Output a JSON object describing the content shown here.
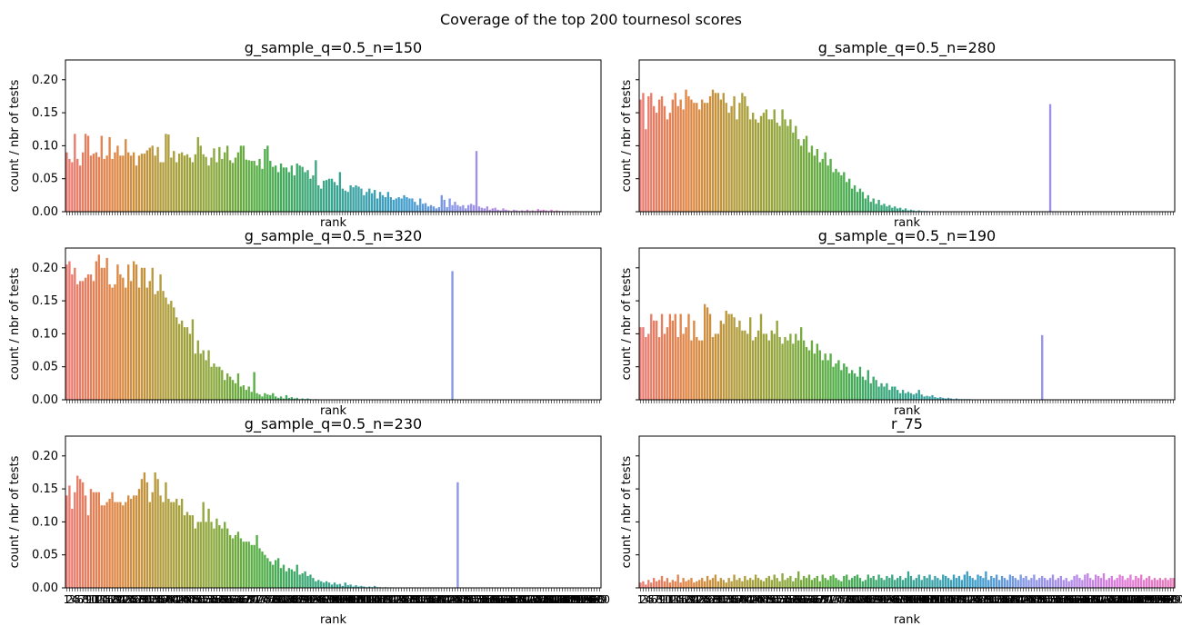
{
  "figure": {
    "suptitle": "Coverage of the top 200 tournesol scores"
  },
  "palette": {
    "hue_stops": [
      "#ea7a73",
      "#df8642",
      "#b19d3c",
      "#8ca83d",
      "#51ae45",
      "#39a778",
      "#3aa2a5",
      "#3f9ccc",
      "#8a97e6",
      "#b78ae8",
      "#e27ad8",
      "#e579b8"
    ],
    "rank_flagged_color": "#b490f0",
    "axes_color": "#000000"
  },
  "chart_data": [
    {
      "type": "bar",
      "title": "g_sample_q=0.5_n=150",
      "xlabel": "rank",
      "ylabel": "count / nbr of tests",
      "ylim": [
        0,
        0.23
      ],
      "yticks": [
        "0.00",
        "0.05",
        "0.10",
        "0.15",
        "0.20"
      ],
      "n_categories": 200,
      "x_ticklabels_shown": false,
      "values": [
        0.09,
        0.08,
        0.075,
        0.118,
        0.08,
        0.07,
        0.09,
        0.118,
        0.115,
        0.085,
        0.088,
        0.09,
        0.083,
        0.115,
        0.08,
        0.085,
        0.113,
        0.08,
        0.09,
        0.1,
        0.085,
        0.085,
        0.11,
        0.09,
        0.085,
        0.09,
        0.07,
        0.085,
        0.088,
        0.088,
        0.093,
        0.097,
        0.1,
        0.085,
        0.098,
        0.075,
        0.075,
        0.118,
        0.117,
        0.082,
        0.092,
        0.075,
        0.088,
        0.09,
        0.085,
        0.087,
        0.082,
        0.075,
        0.087,
        0.113,
        0.1,
        0.087,
        0.083,
        0.07,
        0.082,
        0.096,
        0.075,
        0.098,
        0.08,
        0.09,
        0.1,
        0.078,
        0.074,
        0.082,
        0.09,
        0.1,
        0.1,
        0.079,
        0.078,
        0.077,
        0.077,
        0.07,
        0.08,
        0.065,
        0.095,
        0.1,
        0.077,
        0.068,
        0.07,
        0.06,
        0.073,
        0.067,
        0.067,
        0.06,
        0.07,
        0.055,
        0.073,
        0.07,
        0.068,
        0.06,
        0.063,
        0.05,
        0.055,
        0.078,
        0.04,
        0.035,
        0.047,
        0.048,
        0.05,
        0.05,
        0.045,
        0.04,
        0.06,
        0.035,
        0.032,
        0.03,
        0.04,
        0.037,
        0.04,
        0.038,
        0.035,
        0.025,
        0.03,
        0.035,
        0.028,
        0.033,
        0.02,
        0.03,
        0.025,
        0.022,
        0.03,
        0.022,
        0.018,
        0.02,
        0.022,
        0.02,
        0.025,
        0.022,
        0.02,
        0.02,
        0.015,
        0.01,
        0.02,
        0.012,
        0.013,
        0.008,
        0.01,
        0.008,
        0.005,
        0.007,
        0.025,
        0.018,
        0.007,
        0.02,
        0.01,
        0.015,
        0.01,
        0.008,
        0.01,
        0.005,
        0.01,
        0.012,
        0.01,
        0.092,
        0.008,
        0.006,
        0.005,
        0.008,
        0.003,
        0.005,
        0.006,
        0.003,
        0.002,
        0.005,
        0.003,
        0.002,
        0.001,
        0.003,
        0.002,
        0.001,
        0.002,
        0.001,
        0.003,
        0.001,
        0.002,
        0.001,
        0.004,
        0.002,
        0.003,
        0.002,
        0.001,
        0.003,
        0.001,
        0.002,
        0.001,
        0.001,
        0,
        0.001,
        0,
        0,
        0.001,
        0,
        0,
        0,
        0,
        0,
        0,
        0,
        0,
        0,
        0,
        0,
        0,
        0
      ]
    },
    {
      "type": "bar",
      "title": "g_sample_q=0.5_n=280",
      "xlabel": "rank",
      "ylabel": "count / nbr of tests",
      "ylim": [
        0,
        0.23
      ],
      "yticks": [],
      "n_categories": 200,
      "x_ticklabels_shown": false,
      "values": [
        0.17,
        0.18,
        0.125,
        0.175,
        0.18,
        0.16,
        0.15,
        0.17,
        0.175,
        0.16,
        0.14,
        0.15,
        0.17,
        0.18,
        0.16,
        0.17,
        0.155,
        0.185,
        0.175,
        0.17,
        0.165,
        0.165,
        0.155,
        0.17,
        0.165,
        0.165,
        0.175,
        0.185,
        0.18,
        0.18,
        0.17,
        0.18,
        0.165,
        0.15,
        0.16,
        0.175,
        0.14,
        0.165,
        0.18,
        0.175,
        0.16,
        0.14,
        0.15,
        0.14,
        0.135,
        0.145,
        0.15,
        0.155,
        0.14,
        0.14,
        0.155,
        0.135,
        0.13,
        0.155,
        0.14,
        0.13,
        0.14,
        0.12,
        0.13,
        0.11,
        0.1,
        0.11,
        0.115,
        0.09,
        0.1,
        0.085,
        0.095,
        0.075,
        0.08,
        0.09,
        0.07,
        0.08,
        0.06,
        0.065,
        0.06,
        0.055,
        0.06,
        0.045,
        0.05,
        0.035,
        0.04,
        0.03,
        0.035,
        0.03,
        0.02,
        0.025,
        0.015,
        0.02,
        0.012,
        0.018,
        0.01,
        0.012,
        0.008,
        0.01,
        0.006,
        0.008,
        0.005,
        0.006,
        0.003,
        0.005,
        0.002,
        0.003,
        0.002,
        0.001,
        0.002,
        0.001,
        0.001,
        0.001,
        0,
        0,
        0,
        0,
        0,
        0,
        0,
        0,
        0,
        0,
        0,
        0,
        0,
        0,
        0,
        0,
        0,
        0,
        0,
        0,
        0,
        0,
        0,
        0,
        0,
        0,
        0,
        0,
        0,
        0,
        0,
        0,
        0,
        0,
        0,
        0,
        0,
        0,
        0,
        0,
        0,
        0,
        0,
        0,
        0,
        0.163,
        0,
        0,
        0,
        0,
        0,
        0,
        0,
        0,
        0,
        0,
        0,
        0,
        0,
        0,
        0,
        0,
        0,
        0,
        0,
        0,
        0,
        0,
        0,
        0,
        0,
        0,
        0,
        0,
        0,
        0,
        0,
        0,
        0,
        0,
        0,
        0,
        0,
        0,
        0,
        0,
        0,
        0,
        0,
        0,
        0,
        0,
        0,
        0,
        0,
        0
      ]
    },
    {
      "type": "bar",
      "title": "g_sample_q=0.5_n=320",
      "xlabel": "rank",
      "ylabel": "count / nbr of tests",
      "ylim": [
        0,
        0.23
      ],
      "yticks": [
        "0.00",
        "0.05",
        "0.10",
        "0.15",
        "0.20"
      ],
      "n_categories": 200,
      "x_ticklabels_shown": false,
      "values": [
        0.205,
        0.21,
        0.19,
        0.2,
        0.175,
        0.18,
        0.18,
        0.185,
        0.19,
        0.19,
        0.18,
        0.21,
        0.22,
        0.2,
        0.2,
        0.215,
        0.175,
        0.17,
        0.175,
        0.205,
        0.19,
        0.185,
        0.17,
        0.205,
        0.18,
        0.21,
        0.205,
        0.17,
        0.2,
        0.2,
        0.17,
        0.18,
        0.2,
        0.16,
        0.165,
        0.19,
        0.165,
        0.155,
        0.145,
        0.15,
        0.14,
        0.125,
        0.115,
        0.12,
        0.11,
        0.11,
        0.1,
        0.122,
        0.07,
        0.09,
        0.07,
        0.075,
        0.06,
        0.075,
        0.05,
        0.055,
        0.05,
        0.05,
        0.045,
        0.03,
        0.04,
        0.035,
        0.03,
        0.025,
        0.04,
        0.02,
        0.022,
        0.015,
        0.02,
        0.012,
        0.042,
        0.01,
        0.008,
        0.005,
        0.01,
        0.008,
        0.007,
        0.01,
        0.005,
        0.003,
        0.005,
        0.002,
        0.007,
        0.003,
        0.004,
        0.002,
        0.003,
        0.001,
        0.002,
        0.001,
        0.002,
        0.001,
        0,
        0.001,
        0,
        0,
        0,
        0,
        0,
        0,
        0,
        0,
        0,
        0,
        0,
        0,
        0,
        0,
        0,
        0,
        0,
        0,
        0,
        0,
        0,
        0,
        0,
        0,
        0,
        0,
        0,
        0,
        0,
        0,
        0,
        0,
        0,
        0,
        0,
        0,
        0,
        0,
        0,
        0,
        0,
        0,
        0,
        0,
        0,
        0,
        0,
        0,
        0,
        0,
        0.195,
        0,
        0,
        0,
        0,
        0,
        0,
        0,
        0,
        0,
        0,
        0,
        0,
        0,
        0,
        0,
        0,
        0,
        0,
        0,
        0,
        0,
        0,
        0,
        0,
        0,
        0,
        0,
        0,
        0,
        0,
        0,
        0,
        0,
        0,
        0,
        0,
        0,
        0,
        0,
        0,
        0,
        0,
        0,
        0,
        0,
        0,
        0,
        0,
        0,
        0,
        0,
        0,
        0,
        0,
        0,
        0,
        0,
        0,
        0,
        0,
        0,
        0,
        0,
        0,
        0,
        0
      ]
    },
    {
      "type": "bar",
      "title": "g_sample_q=0.5_n=190",
      "xlabel": "rank",
      "ylabel": "count / nbr of tests",
      "ylim": [
        0,
        0.23
      ],
      "yticks": [],
      "n_categories": 200,
      "x_ticklabels_shown": false,
      "values": [
        0.11,
        0.11,
        0.095,
        0.1,
        0.13,
        0.12,
        0.12,
        0.095,
        0.13,
        0.1,
        0.11,
        0.13,
        0.12,
        0.13,
        0.095,
        0.13,
        0.1,
        0.11,
        0.13,
        0.09,
        0.12,
        0.095,
        0.09,
        0.09,
        0.145,
        0.14,
        0.13,
        0.095,
        0.1,
        0.1,
        0.12,
        0.115,
        0.135,
        0.13,
        0.13,
        0.125,
        0.11,
        0.12,
        0.105,
        0.105,
        0.1,
        0.125,
        0.09,
        0.095,
        0.105,
        0.13,
        0.1,
        0.1,
        0.09,
        0.105,
        0.1,
        0.12,
        0.095,
        0.085,
        0.095,
        0.09,
        0.1,
        0.085,
        0.1,
        0.09,
        0.11,
        0.09,
        0.08,
        0.075,
        0.09,
        0.07,
        0.085,
        0.075,
        0.06,
        0.07,
        0.06,
        0.07,
        0.05,
        0.055,
        0.06,
        0.045,
        0.055,
        0.05,
        0.04,
        0.045,
        0.04,
        0.035,
        0.05,
        0.035,
        0.03,
        0.045,
        0.025,
        0.035,
        0.03,
        0.02,
        0.025,
        0.02,
        0.025,
        0.015,
        0.02,
        0.02,
        0.015,
        0.01,
        0.015,
        0.01,
        0.012,
        0.01,
        0.008,
        0.01,
        0.015,
        0.008,
        0.005,
        0.006,
        0.005,
        0.007,
        0.004,
        0.003,
        0.004,
        0.003,
        0.002,
        0.003,
        0.002,
        0.001,
        0.002,
        0.001,
        0.001,
        0.001,
        0.001,
        0.001,
        0,
        0,
        0,
        0,
        0,
        0,
        0,
        0,
        0,
        0,
        0,
        0,
        0,
        0,
        0,
        0,
        0,
        0,
        0,
        0,
        0,
        0,
        0,
        0,
        0,
        0,
        0.098,
        0,
        0,
        0,
        0,
        0,
        0,
        0,
        0,
        0,
        0,
        0,
        0,
        0,
        0,
        0,
        0,
        0,
        0,
        0,
        0,
        0,
        0,
        0,
        0,
        0,
        0,
        0,
        0,
        0,
        0,
        0,
        0,
        0,
        0,
        0,
        0,
        0,
        0,
        0,
        0,
        0,
        0,
        0,
        0,
        0,
        0,
        0,
        0,
        0,
        0,
        0,
        0,
        0,
        0,
        0,
        0,
        0
      ]
    },
    {
      "type": "bar",
      "title": "g_sample_q=0.5_n=230",
      "xlabel": "rank",
      "ylabel": "count / nbr of tests",
      "ylim": [
        0,
        0.23
      ],
      "yticks": [
        "0.00",
        "0.05",
        "0.10",
        "0.15",
        "0.20"
      ],
      "n_categories": 200,
      "x_ticklabels_shown": true,
      "x_ticklabels_note": "1 … 200 (overlapping, illegible)",
      "values": [
        0.14,
        0.155,
        0.12,
        0.145,
        0.17,
        0.165,
        0.16,
        0.14,
        0.11,
        0.15,
        0.145,
        0.145,
        0.145,
        0.125,
        0.125,
        0.13,
        0.135,
        0.145,
        0.13,
        0.13,
        0.13,
        0.125,
        0.13,
        0.14,
        0.135,
        0.14,
        0.14,
        0.15,
        0.165,
        0.175,
        0.16,
        0.13,
        0.145,
        0.175,
        0.165,
        0.14,
        0.13,
        0.16,
        0.135,
        0.13,
        0.13,
        0.135,
        0.125,
        0.135,
        0.11,
        0.115,
        0.11,
        0.11,
        0.09,
        0.1,
        0.1,
        0.13,
        0.1,
        0.12,
        0.1,
        0.09,
        0.105,
        0.095,
        0.09,
        0.1,
        0.09,
        0.08,
        0.075,
        0.08,
        0.085,
        0.075,
        0.07,
        0.07,
        0.07,
        0.065,
        0.065,
        0.08,
        0.06,
        0.055,
        0.05,
        0.045,
        0.04,
        0.035,
        0.042,
        0.045,
        0.03,
        0.035,
        0.025,
        0.03,
        0.028,
        0.025,
        0.035,
        0.02,
        0.022,
        0.025,
        0.018,
        0.02,
        0.015,
        0.01,
        0.012,
        0.01,
        0.008,
        0.01,
        0.008,
        0.005,
        0.008,
        0.005,
        0.006,
        0.003,
        0.008,
        0.004,
        0.005,
        0.002,
        0.004,
        0.002,
        0.003,
        0.002,
        0.001,
        0.002,
        0.001,
        0.003,
        0.001,
        0.001,
        0,
        0.001,
        0,
        0,
        0,
        0,
        0,
        0,
        0,
        0,
        0,
        0,
        0,
        0,
        0,
        0,
        0,
        0,
        0,
        0,
        0,
        0,
        0,
        0,
        0,
        0,
        0,
        0,
        0.16,
        0,
        0,
        0,
        0,
        0,
        0,
        0,
        0,
        0,
        0,
        0,
        0,
        0,
        0,
        0,
        0,
        0,
        0,
        0,
        0,
        0,
        0,
        0,
        0,
        0,
        0,
        0,
        0,
        0,
        0,
        0,
        0,
        0,
        0,
        0,
        0,
        0,
        0,
        0,
        0,
        0,
        0,
        0,
        0,
        0,
        0,
        0,
        0,
        0,
        0,
        0,
        0,
        0,
        0,
        0,
        0,
        0,
        0,
        0,
        0,
        0,
        0,
        0,
        0,
        0
      ]
    },
    {
      "type": "bar",
      "title": "r_75",
      "xlabel": "rank",
      "ylabel": "count / nbr of tests",
      "ylim": [
        0,
        0.23
      ],
      "yticks": [],
      "n_categories": 200,
      "x_ticklabels_shown": true,
      "x_ticklabels_note": "1 … 200 (overlapping, illegible)",
      "values": [
        0.008,
        0.01,
        0.005,
        0.012,
        0.008,
        0.015,
        0.01,
        0.012,
        0.018,
        0.01,
        0.015,
        0.008,
        0.012,
        0.01,
        0.02,
        0.008,
        0.015,
        0.01,
        0.012,
        0.015,
        0.008,
        0.01,
        0.012,
        0.015,
        0.01,
        0.018,
        0.012,
        0.015,
        0.02,
        0.01,
        0.015,
        0.012,
        0.008,
        0.015,
        0.01,
        0.02,
        0.012,
        0.015,
        0.01,
        0.018,
        0.012,
        0.015,
        0.012,
        0.02,
        0.015,
        0.012,
        0.01,
        0.015,
        0.018,
        0.012,
        0.02,
        0.015,
        0.01,
        0.022,
        0.012,
        0.015,
        0.018,
        0.01,
        0.015,
        0.025,
        0.012,
        0.018,
        0.015,
        0.02,
        0.012,
        0.015,
        0.018,
        0.01,
        0.02,
        0.015,
        0.012,
        0.018,
        0.02,
        0.015,
        0.012,
        0.01,
        0.018,
        0.02,
        0.012,
        0.015,
        0.018,
        0.02,
        0.015,
        0.01,
        0.012,
        0.02,
        0.015,
        0.018,
        0.012,
        0.02,
        0.015,
        0.012,
        0.018,
        0.015,
        0.02,
        0.012,
        0.015,
        0.018,
        0.012,
        0.015,
        0.025,
        0.018,
        0.012,
        0.015,
        0.02,
        0.012,
        0.018,
        0.015,
        0.02,
        0.012,
        0.018,
        0.015,
        0.012,
        0.02,
        0.018,
        0.015,
        0.012,
        0.02,
        0.015,
        0.018,
        0.012,
        0.02,
        0.025,
        0.018,
        0.015,
        0.012,
        0.02,
        0.018,
        0.015,
        0.025,
        0.012,
        0.018,
        0.015,
        0.02,
        0.012,
        0.018,
        0.015,
        0.012,
        0.02,
        0.018,
        0.015,
        0.012,
        0.02,
        0.015,
        0.018,
        0.012,
        0.015,
        0.02,
        0.012,
        0.015,
        0.018,
        0.015,
        0.012,
        0.015,
        0.02,
        0.012,
        0.015,
        0.018,
        0.012,
        0.015,
        0.01,
        0.012,
        0.018,
        0.02,
        0.015,
        0.012,
        0.02,
        0.022,
        0.015,
        0.012,
        0.02,
        0.018,
        0.015,
        0.022,
        0.012,
        0.015,
        0.018,
        0.012,
        0.015,
        0.02,
        0.018,
        0.012,
        0.015,
        0.02,
        0.012,
        0.018,
        0.015,
        0.02,
        0.012,
        0.015,
        0.018,
        0.012,
        0.015,
        0.012,
        0.015,
        0.012,
        0.015,
        0.012,
        0.015,
        0.015
      ]
    }
  ]
}
